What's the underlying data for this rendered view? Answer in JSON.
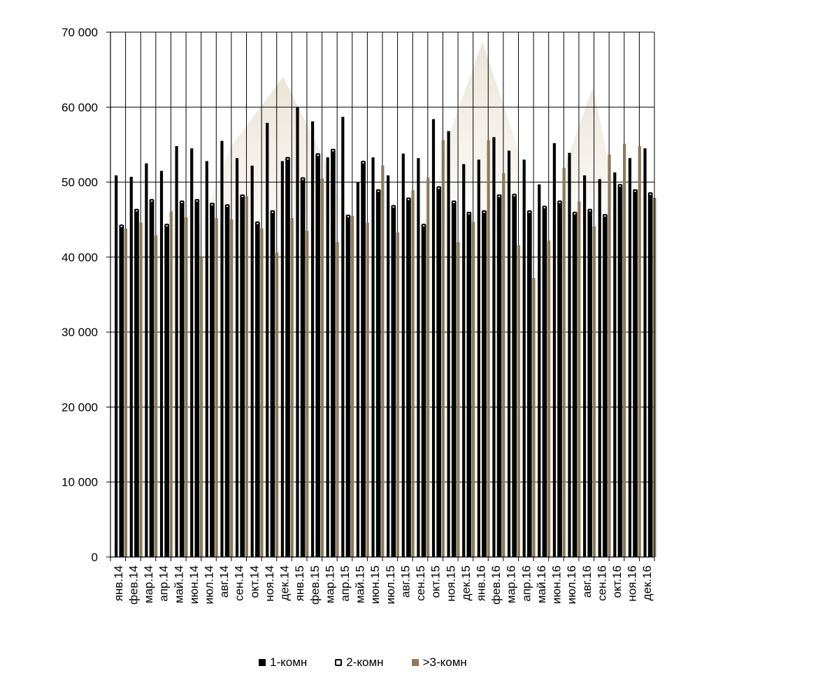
{
  "chart_data": {
    "type": "bar",
    "title": "",
    "xlabel": "",
    "ylabel": "",
    "ylim": [
      0,
      70000
    ],
    "yticks": [
      0,
      10000,
      20000,
      30000,
      40000,
      50000,
      60000,
      70000
    ],
    "ytick_labels": [
      "0",
      "10 000",
      "20 000",
      "30 000",
      "40 000",
      "50 000",
      "60 000",
      "70 000"
    ],
    "grid": true,
    "legend_position": "bottom",
    "categories": [
      "янв.14",
      "фев.14",
      "мар.14",
      "апр.14",
      "май.14",
      "июн.14",
      "июл.14",
      "авг.14",
      "сен.14",
      "окт.14",
      "ноя.14",
      "дек.14",
      "янв.15",
      "фев.15",
      "мар.15",
      "апр.15",
      "май.15",
      "июн.15",
      "июл.15",
      "авг.15",
      "сен.15",
      "окт.15",
      "ноя.15",
      "дек.15",
      "янв.16",
      "фев.16",
      "мар.16",
      "апр.16",
      "май.16",
      "июн.16",
      "июл.16",
      "авг.16",
      "сен.16",
      "окт.16",
      "ноя.16",
      "дек.16"
    ],
    "series": [
      {
        "name": "1-комн",
        "color": "#000000",
        "values": [
          50900,
          50700,
          52500,
          51500,
          54800,
          54500,
          52800,
          55500,
          53200,
          52200,
          57900,
          52800,
          60000,
          58100,
          53300,
          58700,
          50000,
          53300,
          50900,
          53800,
          53200,
          58400,
          56800,
          52400,
          53000,
          56000,
          54200,
          53000,
          49700,
          55200,
          53900,
          50900,
          50400,
          51300,
          53200,
          54500
        ]
      },
      {
        "name": "2-комн",
        "color": "#000000",
        "hollow": true,
        "values": [
          44300,
          46400,
          47700,
          44400,
          47500,
          47700,
          47200,
          47000,
          48300,
          44700,
          46200,
          53300,
          50600,
          53800,
          54400,
          45600,
          52800,
          49000,
          46900,
          47900,
          44400,
          49400,
          47500,
          46000,
          46200,
          48300,
          48400,
          46200,
          46800,
          47500,
          46000,
          46400,
          45700,
          49700,
          49000,
          48600
        ]
      },
      {
        "name": ">3-комн",
        "color": "#8c7a5a",
        "values": [
          43800,
          44600,
          42900,
          46100,
          45300,
          40000,
          45200,
          45000,
          48100,
          43800,
          40600,
          45200,
          43500,
          50500,
          42000,
          45500,
          44600,
          52200,
          43300,
          48900,
          50600,
          55600,
          42000,
          44700,
          55600,
          51200,
          41600,
          37200,
          42200,
          51900,
          47400,
          44100,
          53700,
          55100,
          54800,
          47900
        ]
      }
    ]
  }
}
